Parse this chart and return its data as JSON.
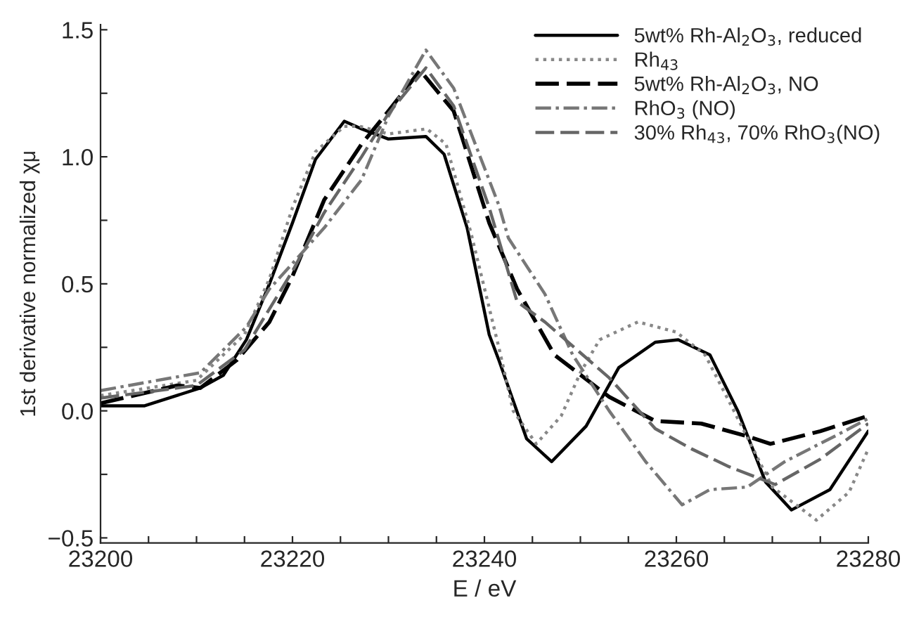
{
  "chart_data": {
    "type": "line",
    "xlabel": "E / eV",
    "ylabel": "1st derivative normalized χμ",
    "xlim": [
      23200,
      23280
    ],
    "xticks": [
      23200,
      {
        "value": 23205,
        "label": null
      },
      {
        "value": 23210,
        "label": null
      },
      {
        "value": 23215,
        "label": null
      },
      23220,
      {
        "value": 23225,
        "label": null
      },
      {
        "value": 23230,
        "label": null
      },
      {
        "value": 23235,
        "label": null
      },
      23240,
      {
        "value": 23245,
        "label": null
      },
      {
        "value": 23250,
        "label": null
      },
      {
        "value": 23255,
        "label": null
      },
      23260,
      {
        "value": 23265,
        "label": null
      },
      {
        "value": 23270,
        "label": null
      },
      {
        "value": 23275,
        "label": null
      },
      23280
    ],
    "ylim": [
      -0.52,
      1.52
    ],
    "yticks": [
      {
        "value": -0.5,
        "label": "−0.5"
      },
      {
        "value": -0.25,
        "label": null
      },
      {
        "value": 0,
        "label": "0.0"
      },
      {
        "value": 0.25,
        "label": null
      },
      {
        "value": 0.5,
        "label": "0.5"
      },
      {
        "value": 0.75,
        "label": null
      },
      {
        "value": 1.0,
        "label": "1.0"
      },
      {
        "value": 1.25,
        "label": null
      },
      {
        "value": 1.5,
        "label": "1.5"
      }
    ],
    "grid": false,
    "legend": "top right",
    "marker": "none",
    "series": [
      {
        "name": "5wt% Rh-Al$_{2}$O$_{3}$, reduced",
        "color": "#000000",
        "line_style": "solid",
        "x": [
          23200,
          23204.6,
          23210.4,
          23212.8,
          23215.2,
          23217.6,
          23220,
          23222.4,
          23225.4,
          23227.2,
          23230,
          23233.9,
          23235.8,
          23238.2,
          23240.5,
          23241.5,
          23244.4,
          23247,
          23250.6,
          23254,
          23257.8,
          23260.2,
          23263.5,
          23266.4,
          23269.3,
          23272,
          23276,
          23280
        ],
        "values": [
          0.02,
          0.02,
          0.09,
          0.14,
          0.28,
          0.5,
          0.74,
          0.99,
          1.14,
          1.11,
          1.07,
          1.08,
          1.01,
          0.72,
          0.3,
          0.2,
          -0.11,
          -0.2,
          -0.06,
          0.17,
          0.27,
          0.28,
          0.22,
          0.0,
          -0.28,
          -0.39,
          -0.31,
          -0.08
        ]
      },
      {
        "name": "Rh$_{43}$",
        "color": "#888888",
        "line_style": "dotted",
        "x": [
          23200,
          23210,
          23215,
          23217.6,
          23220,
          23222.4,
          23225.4,
          23227,
          23230,
          23234,
          23236,
          23238.6,
          23241.5,
          23243,
          23245.4,
          23248,
          23250,
          23252,
          23256,
          23260,
          23263,
          23266,
          23270,
          23274.6,
          23278,
          23280
        ],
        "values": [
          0.06,
          0.12,
          0.3,
          0.52,
          0.8,
          1.02,
          1.12,
          1.12,
          1.09,
          1.11,
          1.05,
          0.7,
          0.25,
          0.0,
          -0.13,
          -0.02,
          0.15,
          0.28,
          0.35,
          0.31,
          0.22,
          0.0,
          -0.3,
          -0.43,
          -0.32,
          -0.15
        ]
      },
      {
        "name": "5wt% Rh-Al$_{2}$O$_{3}$, NO",
        "color": "#000000",
        "line_style": "dashed",
        "x": [
          23200,
          23208,
          23210.4,
          23214.2,
          23217.6,
          23220,
          23223.3,
          23227.2,
          23230,
          23233.3,
          23236.8,
          23240.5,
          23243.4,
          23247.3,
          23253,
          23257.8,
          23262.6,
          23267.4,
          23269.8,
          23275,
          23280
        ],
        "values": [
          0.03,
          0.1,
          0.09,
          0.2,
          0.35,
          0.53,
          0.83,
          1.05,
          1.18,
          1.34,
          1.18,
          0.74,
          0.48,
          0.22,
          0.055,
          -0.04,
          -0.05,
          -0.1,
          -0.13,
          -0.08,
          -0.02
        ]
      },
      {
        "name": "RhO$_{3}$ (NO)",
        "color": "#777777",
        "line_style": "dashdot",
        "x": [
          23200,
          23210.4,
          23215.2,
          23217.6,
          23220,
          23223.3,
          23227.2,
          23230,
          23233.9,
          23236.8,
          23241.5,
          23242.5,
          23246.3,
          23249.2,
          23253,
          23256.8,
          23260.6,
          23263.5,
          23267.4,
          23271.3,
          23277,
          23280
        ],
        "values": [
          0.08,
          0.15,
          0.33,
          0.48,
          0.58,
          0.72,
          0.91,
          1.16,
          1.42,
          1.27,
          0.81,
          0.68,
          0.46,
          0.22,
          0.0,
          -0.2,
          -0.37,
          -0.31,
          -0.3,
          -0.2,
          -0.09,
          -0.03
        ]
      },
      {
        "name": "30% Rh$_{43}$, 70% RhO$_{3}$(NO)",
        "color": "#666666",
        "line_style": "dashed",
        "x": [
          23200,
          23210,
          23215,
          23220,
          23223.3,
          23227.2,
          23230,
          23233.9,
          23236.8,
          23240.5,
          23243.4,
          23246.3,
          23253,
          23257.8,
          23261.6,
          23265.5,
          23270.3,
          23275,
          23280
        ],
        "values": [
          0.05,
          0.1,
          0.24,
          0.55,
          0.78,
          1.0,
          1.17,
          1.35,
          1.2,
          0.8,
          0.43,
          0.35,
          0.13,
          -0.07,
          -0.15,
          -0.22,
          -0.29,
          -0.19,
          -0.05
        ]
      }
    ]
  }
}
